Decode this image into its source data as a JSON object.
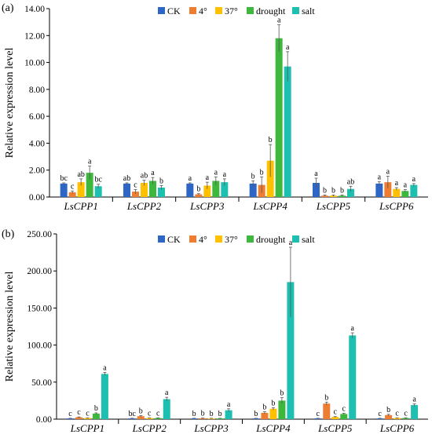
{
  "colors": {
    "CK": "#2E66C6",
    "4°": "#ED7D31",
    "37°": "#FFC000",
    "drought": "#3DB83D",
    "salt": "#1DBFB0"
  },
  "chart_data": [
    {
      "type": "bar",
      "panel_label": "(a)",
      "ylabel": "Relative expression level",
      "ylim": [
        0,
        14
      ],
      "yticks": [
        "0.00",
        "2.00",
        "4.00",
        "6.00",
        "8.00",
        "10.00",
        "12.00",
        "14.00"
      ],
      "legend_position": "top-center",
      "categories": [
        "LsCPP1",
        "LsCPP2",
        "LsCPP3",
        "LsCPP4",
        "LsCPP5",
        "LsCPP6"
      ],
      "series": [
        {
          "name": "CK",
          "values": [
            1.0,
            1.0,
            1.0,
            1.0,
            1.05,
            1.0
          ],
          "errors": [
            0.05,
            0.05,
            0.05,
            0.2,
            0.35,
            0.15
          ],
          "letters": [
            "bc",
            "ab",
            "a",
            "b",
            "a",
            "a"
          ]
        },
        {
          "name": "4°",
          "values": [
            0.35,
            0.4,
            0.2,
            0.9,
            0.1,
            1.1
          ],
          "errors": [
            0.1,
            0.15,
            0.05,
            0.6,
            0.05,
            0.45
          ],
          "letters": [
            "c",
            "c",
            "b",
            "b",
            "b",
            "a"
          ]
        },
        {
          "name": "37°",
          "values": [
            1.1,
            1.05,
            0.85,
            2.7,
            0.1,
            0.6
          ],
          "errors": [
            0.25,
            0.2,
            0.25,
            1.2,
            0.05,
            0.1
          ],
          "letters": [
            "ab",
            "ab",
            "a",
            "b",
            "b",
            "a"
          ]
        },
        {
          "name": "drought",
          "values": [
            1.8,
            1.2,
            1.2,
            11.8,
            0.1,
            0.45
          ],
          "errors": [
            0.5,
            0.25,
            0.3,
            1.0,
            0.05,
            0.1
          ],
          "letters": [
            "a",
            "a",
            "a",
            "a",
            "b",
            "a"
          ]
        },
        {
          "name": "salt",
          "values": [
            0.8,
            0.7,
            1.1,
            9.7,
            0.6,
            0.9
          ],
          "errors": [
            0.15,
            0.15,
            0.25,
            1.1,
            0.2,
            0.1
          ],
          "letters": [
            "bc",
            "b",
            "a",
            "a",
            "ab",
            "a"
          ]
        }
      ]
    },
    {
      "type": "bar",
      "panel_label": "(b)",
      "ylabel": "Relative expression level",
      "ylim": [
        0,
        250
      ],
      "yticks": [
        "0.00",
        "50.00",
        "100.00",
        "150.00",
        "200.00",
        "250.00"
      ],
      "legend_position": "top-center",
      "categories": [
        "LsCPP1",
        "LsCPP2",
        "LsCPP3",
        "LsCPP4",
        "LsCPP5",
        "LsCPP6"
      ],
      "series": [
        {
          "name": "CK",
          "values": [
            1.0,
            1.0,
            1.0,
            1.0,
            1.0,
            1.0
          ],
          "errors": [
            0.2,
            0.2,
            0.2,
            0.2,
            0.2,
            0.2
          ],
          "letters": [
            "c",
            "bc",
            "b",
            "b",
            "c",
            "c"
          ]
        },
        {
          "name": "4°",
          "values": [
            2.5,
            4.0,
            1.2,
            8.5,
            21.0,
            5.5
          ],
          "errors": [
            0.5,
            0.8,
            0.3,
            1.5,
            2.0,
            1.0
          ],
          "letters": [
            "c",
            "b",
            "b",
            "b",
            "b",
            "b"
          ]
        },
        {
          "name": "37°",
          "values": [
            1.5,
            1.5,
            1.0,
            14.0,
            3.0,
            1.5
          ],
          "errors": [
            0.3,
            0.3,
            0.2,
            1.5,
            0.5,
            0.3
          ],
          "letters": [
            "c",
            "c",
            "b",
            "b",
            "c",
            "c"
          ]
        },
        {
          "name": "drought",
          "values": [
            7.5,
            1.5,
            1.0,
            25.0,
            7.0,
            1.5
          ],
          "errors": [
            1.0,
            0.3,
            0.2,
            4.0,
            1.0,
            0.3
          ],
          "letters": [
            "b",
            "c",
            "b",
            "b",
            "c",
            "c"
          ]
        },
        {
          "name": "salt",
          "values": [
            61.0,
            27.0,
            12.0,
            185.0,
            113.0,
            19.0
          ],
          "errors": [
            2.0,
            2.5,
            2.0,
            47.0,
            3.5,
            1.5
          ],
          "letters": [
            "a",
            "a",
            "a",
            "a",
            "a",
            "a"
          ]
        }
      ]
    }
  ]
}
